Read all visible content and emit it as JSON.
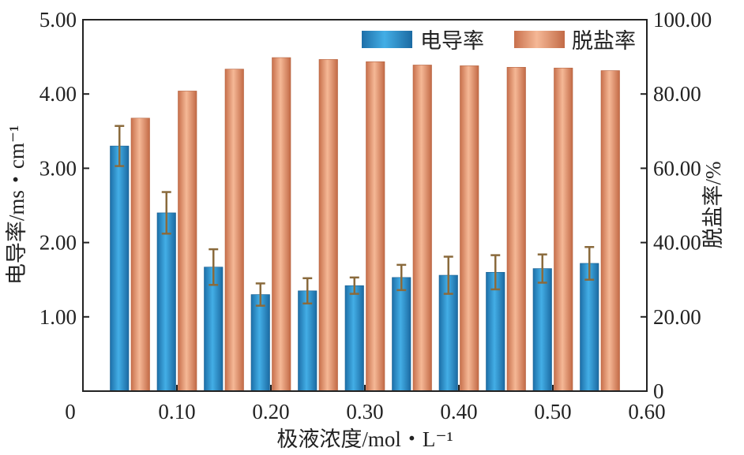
{
  "chart_data": {
    "type": "bar",
    "x": [
      0.05,
      0.1,
      0.15,
      0.2,
      0.25,
      0.3,
      0.35,
      0.4,
      0.45,
      0.5,
      0.55
    ],
    "xlim": [
      0,
      0.6
    ],
    "xticks": [
      0,
      0.1,
      0.2,
      0.3,
      0.4,
      0.5,
      0.6
    ],
    "xtick_labels": [
      "0",
      "0.10",
      "0.20",
      "0.30",
      "0.40",
      "0.50",
      "0.60"
    ],
    "xlabel": "极液浓度/mol・L⁻¹",
    "ylabel_left": "电导率/ms・cm⁻¹",
    "ylabel_right": "脱盐率/%",
    "ylim_left": [
      0,
      5.0
    ],
    "ylim_right": [
      0,
      100.0
    ],
    "yticks_left": [
      1.0,
      2.0,
      3.0,
      4.0,
      5.0
    ],
    "ytick_labels_left": [
      "1.00",
      "2.00",
      "3.00",
      "4.00",
      "5.00"
    ],
    "yticks_right": [
      0,
      20,
      40,
      60,
      80,
      100
    ],
    "ytick_labels_right": [
      "0",
      "20.00",
      "40.00",
      "60.00",
      "80.00",
      "100.00"
    ],
    "legend_position": "top-right",
    "series": [
      {
        "name": "电导率",
        "axis": "left",
        "color": "#2b8fcf",
        "values": [
          3.3,
          2.4,
          1.67,
          1.3,
          1.35,
          1.42,
          1.53,
          1.56,
          1.6,
          1.65,
          1.72
        ],
        "error": [
          0.27,
          0.28,
          0.24,
          0.15,
          0.17,
          0.11,
          0.17,
          0.25,
          0.23,
          0.19,
          0.22
        ]
      },
      {
        "name": "脱盐率",
        "axis": "right",
        "color": "#e49a78",
        "values": [
          73.5,
          80.8,
          86.7,
          89.8,
          89.3,
          88.7,
          87.8,
          87.6,
          87.2,
          87.0,
          86.3
        ]
      }
    ]
  }
}
